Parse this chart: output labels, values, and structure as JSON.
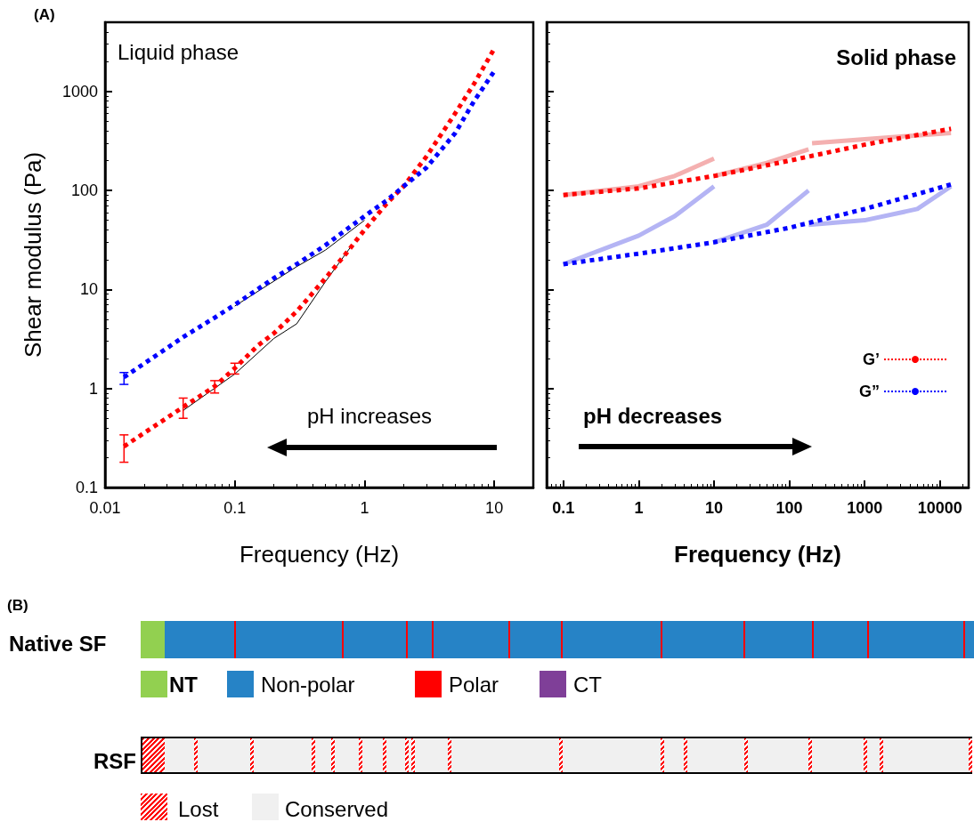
{
  "chart_data": [
    {
      "type": "line",
      "xlabel": "Frequency (Hz)",
      "ylabel": "Shear modulus (Pa)",
      "log": "xy",
      "xlim": [
        0.01,
        20
      ],
      "ylim": [
        0.1,
        5000
      ],
      "xticks": [
        0.01,
        0.1,
        1,
        10
      ],
      "yticks": [
        0.1,
        1,
        10,
        100,
        1000
      ],
      "grid": false,
      "legend": false,
      "marker": "none",
      "annotations": [
        "(A)",
        "Liquid phase",
        "pH increases"
      ],
      "series": [
        {
          "color": "#ff0000",
          "line_style": "dotted",
          "x": [
            0.014,
            0.04,
            0.07,
            0.1,
            0.15,
            0.2,
            0.3,
            0.5,
            0.7,
            1,
            1.5,
            2,
            3,
            5,
            7,
            10
          ],
          "values": [
            0.26,
            0.65,
            1.05,
            1.6,
            2.7,
            3.6,
            6,
            13,
            22,
            40,
            75,
            110,
            220,
            600,
            1200,
            2700
          ],
          "errors": [
            [
              0.18,
              0.34
            ],
            [
              0.5,
              0.8
            ],
            [
              0.9,
              1.2
            ],
            [
              1.4,
              1.8
            ],
            null,
            null,
            null,
            null,
            null,
            null,
            null,
            null,
            null,
            null,
            null,
            null
          ]
        },
        {
          "color": "#0000ff",
          "line_style": "dotted",
          "x": [
            0.014,
            0.04,
            0.07,
            0.1,
            0.2,
            0.3,
            0.5,
            1,
            1.5,
            2,
            3,
            5,
            7,
            10
          ],
          "values": [
            1.3,
            3.3,
            5.2,
            7,
            13,
            18,
            28,
            55,
            80,
            110,
            170,
            380,
            800,
            1600
          ],
          "errors": [
            [
              1.1,
              1.45
            ],
            null,
            null,
            null,
            null,
            null,
            null,
            null,
            null,
            null,
            null,
            null,
            null,
            null
          ]
        },
        {
          "color": "#000000",
          "line_style": "solid",
          "x": [
            0.04,
            0.1,
            0.2,
            0.3,
            0.5,
            0.8
          ],
          "values": [
            0.6,
            1.4,
            3.2,
            4.5,
            12,
            28
          ]
        },
        {
          "color": "#000000",
          "line_style": "solid",
          "x": [
            0.1,
            0.3,
            0.5,
            1
          ],
          "values": [
            6.8,
            17,
            25,
            50
          ]
        }
      ]
    },
    {
      "type": "line",
      "xlabel": "Frequency (Hz)",
      "log": "xy",
      "xlim": [
        0.06,
        24000
      ],
      "ylim": [
        0.1,
        5000
      ],
      "xticks": [
        0.1,
        1,
        10,
        100,
        1000,
        10000
      ],
      "yticks": [
        0.1,
        1,
        10,
        100,
        1000
      ],
      "tick_labels": "x",
      "grid": false,
      "legend": "bottom right",
      "marker": "none",
      "annotations": [
        "Solid phase",
        "pH decreases"
      ],
      "series": [
        {
          "color": "#f4b0b0",
          "line_style": "solid",
          "x": [
            0.1,
            1,
            3,
            10
          ],
          "values": [
            90,
            110,
            140,
            210
          ]
        },
        {
          "color": "#f4b0b0",
          "line_style": "solid",
          "x": [
            10,
            50,
            180
          ],
          "values": [
            140,
            190,
            260
          ]
        },
        {
          "color": "#f4b0b0",
          "line_style": "solid",
          "x": [
            200,
            1000,
            14000
          ],
          "values": [
            300,
            330,
            380
          ]
        },
        {
          "color": "#b4b4f4",
          "line_style": "solid",
          "x": [
            0.1,
            1,
            3,
            10
          ],
          "values": [
            18,
            35,
            55,
            110
          ]
        },
        {
          "color": "#b4b4f4",
          "line_style": "solid",
          "x": [
            10,
            50,
            180
          ],
          "values": [
            30,
            45,
            100
          ]
        },
        {
          "color": "#b4b4f4",
          "line_style": "solid",
          "x": [
            180,
            1000,
            5000,
            14000
          ],
          "values": [
            45,
            50,
            65,
            110
          ]
        },
        {
          "name": "G’",
          "color": "#ff0000",
          "line_style": "dotted",
          "x": [
            0.1,
            1,
            10,
            100,
            1000,
            14000
          ],
          "values": [
            90,
            105,
            140,
            200,
            290,
            420
          ]
        },
        {
          "name": "G”",
          "color": "#0000ff",
          "line_style": "dotted",
          "x": [
            0.1,
            1,
            10,
            100,
            1000,
            14000
          ],
          "values": [
            18,
            23,
            30,
            42,
            65,
            115
          ]
        }
      ]
    },
    {
      "type": "other",
      "annotations": [
        "(B)",
        "Native SF",
        "NT",
        "Non-polar",
        "Polar",
        "CT",
        "RSF",
        "Lost",
        "Conserved"
      ],
      "colors": [
        "#92d050",
        "#2683c6",
        "#ff0000",
        "#7f3f98",
        "#ff0000",
        "#f0f0f0"
      ]
    }
  ]
}
